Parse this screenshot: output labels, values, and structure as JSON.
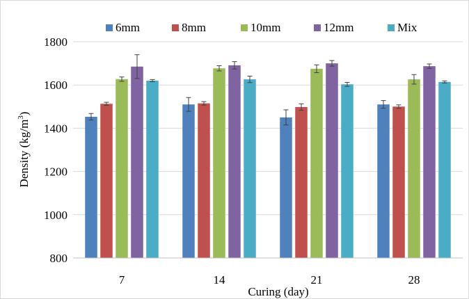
{
  "chart_data": {
    "type": "bar",
    "title": "",
    "xlabel": "Curing (day)",
    "ylabel": "Density (kg/m",
    "ylabel_superscript": "3",
    "ylabel_suffix": ")",
    "ylim": [
      800,
      1800
    ],
    "yticks": [
      800,
      1000,
      1200,
      1400,
      1600,
      1800
    ],
    "grid": true,
    "legend_position": "top",
    "error_bars": true,
    "categories": [
      "7",
      "14",
      "21",
      "28"
    ],
    "series": [
      {
        "name": "6mm",
        "color": "#4F81BD",
        "values": [
          1453,
          1510,
          1450,
          1510
        ],
        "errors": [
          15,
          32,
          35,
          18
        ]
      },
      {
        "name": "8mm",
        "color": "#C0504D",
        "values": [
          1513,
          1515,
          1498,
          1500
        ],
        "errors": [
          7,
          8,
          15,
          8
        ]
      },
      {
        "name": "10mm",
        "color": "#9BBB59",
        "values": [
          1627,
          1677,
          1675,
          1626
        ],
        "errors": [
          10,
          12,
          18,
          22
        ]
      },
      {
        "name": "12mm",
        "color": "#8064A2",
        "values": [
          1685,
          1691,
          1700,
          1687
        ],
        "errors": [
          55,
          17,
          13,
          10
        ]
      },
      {
        "name": "Mix",
        "color": "#4BACC6",
        "values": [
          1620,
          1626,
          1603,
          1614
        ],
        "errors": [
          5,
          15,
          9,
          5
        ]
      }
    ]
  }
}
